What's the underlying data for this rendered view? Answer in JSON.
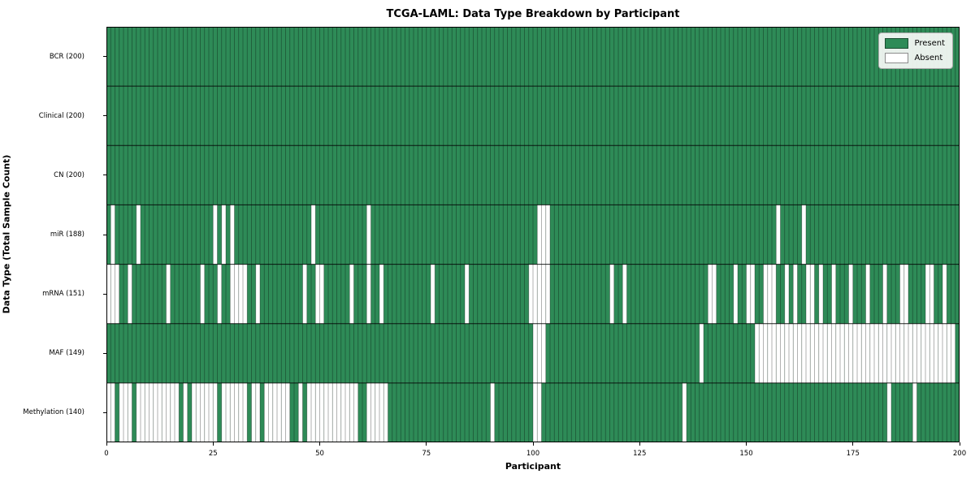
{
  "title": "TCGA-LAML: Data Type Breakdown by Participant",
  "xlabel": "Participant",
  "ylabel": "Data Type (Total Sample Count)",
  "x_ticks": [
    0,
    25,
    50,
    75,
    100,
    125,
    150,
    175,
    200
  ],
  "legend": {
    "present_label": "Present",
    "absent_label": "Absent"
  },
  "colors": {
    "present": "#2e8b57",
    "absent": "#ffffff",
    "cell_edge": "rgba(0,0,0,0.38)",
    "row_divider": "rgba(0,0,0,0.85)",
    "plot_border": "#000000"
  },
  "chart_data": {
    "type": "heatmap",
    "x_axis": {
      "label": "Participant",
      "range": [
        0,
        200
      ],
      "ticks": [
        0,
        25,
        50,
        75,
        100,
        125,
        150,
        175,
        200
      ]
    },
    "y_axis": {
      "label": "Data Type (Total Sample Count)"
    },
    "n_participants": 200,
    "legend_entries": [
      "Present",
      "Absent"
    ],
    "legend_position": "upper right",
    "grid": false,
    "rows": [
      {
        "label": "BCR (200)",
        "name": "BCR",
        "present_count": 200,
        "absent_indices": []
      },
      {
        "label": "Clinical (200)",
        "name": "Clinical",
        "present_count": 200,
        "absent_indices": []
      },
      {
        "label": "CN (200)",
        "name": "CN",
        "present_count": 200,
        "absent_indices": []
      },
      {
        "label": "miR (188)",
        "name": "miR",
        "present_count": 188,
        "absent_indices": [
          1,
          7,
          25,
          27,
          29,
          48,
          61,
          101,
          102,
          103,
          157,
          163
        ]
      },
      {
        "label": "mRNA (151)",
        "name": "mRNA",
        "present_count": 151,
        "absent_indices": [
          0,
          1,
          2,
          5,
          14,
          22,
          26,
          29,
          30,
          31,
          32,
          35,
          46,
          49,
          50,
          57,
          61,
          64,
          76,
          84,
          99,
          100,
          101,
          102,
          103,
          118,
          121,
          141,
          142,
          147,
          150,
          151,
          154,
          155,
          156,
          159,
          161,
          164,
          165,
          167,
          170,
          174,
          178,
          182,
          186,
          187,
          192,
          193,
          196
        ]
      },
      {
        "label": "MAF (149)",
        "name": "MAF",
        "present_count": 149,
        "absent_indices": [
          100,
          101,
          102,
          139,
          152,
          153,
          154,
          155,
          156,
          157,
          158,
          159,
          160,
          161,
          162,
          163,
          164,
          165,
          166,
          167,
          168,
          169,
          170,
          171,
          172,
          173,
          174,
          175,
          176,
          177,
          178,
          179,
          180,
          181,
          182,
          183,
          184,
          185,
          186,
          187,
          188,
          189,
          190,
          191,
          192,
          193,
          194,
          195,
          196,
          197,
          198
        ]
      },
      {
        "label": "Methylation (140)",
        "name": "Methylation",
        "present_count": 140,
        "absent_indices": [
          0,
          1,
          3,
          4,
          5,
          7,
          8,
          9,
          10,
          11,
          12,
          13,
          14,
          15,
          16,
          18,
          20,
          21,
          22,
          23,
          24,
          25,
          27,
          28,
          29,
          30,
          31,
          32,
          34,
          35,
          37,
          38,
          39,
          40,
          41,
          42,
          45,
          47,
          48,
          49,
          50,
          51,
          52,
          53,
          54,
          55,
          56,
          57,
          58,
          61,
          62,
          63,
          64,
          65,
          90,
          100,
          101,
          135,
          183,
          189
        ]
      }
    ]
  }
}
